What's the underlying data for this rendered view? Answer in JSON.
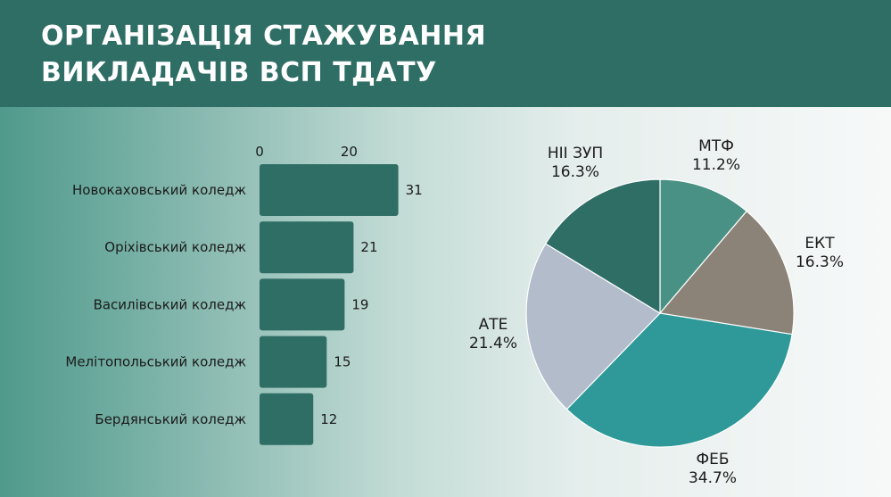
{
  "header": {
    "title_line1": "ОРГАНІЗАЦІЯ СТАЖУВАННЯ",
    "title_line2": "ВИКЛАДАЧІВ ВСП ТДАТУ",
    "background_color": "#2f6e65"
  },
  "chart_data": [
    {
      "type": "bar",
      "orientation": "horizontal",
      "categories": [
        "Новокаховський коледж",
        "Оріхівський коледж",
        "Василівський коледж",
        "Мелітопольський коледж",
        "Бердянський коледж"
      ],
      "values": [
        31,
        21,
        19,
        15,
        12
      ],
      "x_tick_labels": [
        "0",
        "20"
      ],
      "xlim": [
        0,
        31
      ],
      "axis_position": "top",
      "data_labels": true,
      "grid": false,
      "bar_color": "#2f6e65"
    },
    {
      "type": "pie",
      "labels": [
        "МТФ",
        "ЕКТ",
        "ФЕБ",
        "АТЕ",
        "НІІ ЗУП"
      ],
      "values": [
        11.2,
        16.3,
        34.7,
        21.4,
        16.3
      ],
      "value_labels": [
        "11.2%",
        "16.3%",
        "34.7%",
        "21.4%",
        "16.3%"
      ],
      "colors": [
        "#4a9185",
        "#8b8377",
        "#2e9998",
        "#b2bcca",
        "#2f6e65"
      ],
      "start": "top",
      "direction": "clockwise"
    }
  ]
}
